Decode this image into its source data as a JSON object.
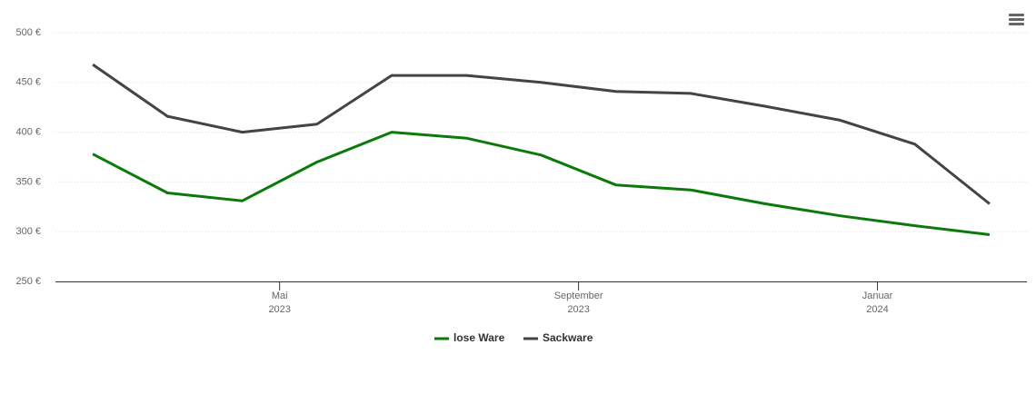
{
  "chart_data": {
    "type": "line",
    "x": [
      "2023-02",
      "2023-03",
      "2023-04",
      "2023-05",
      "2023-06",
      "2023-07",
      "2023-08",
      "2023-09",
      "2023-10",
      "2023-11",
      "2023-12",
      "2024-01",
      "2024-02"
    ],
    "xlim": [
      "2023-02",
      "2024-02"
    ],
    "xticks": [
      {
        "value": "2023-05",
        "label": "Mai",
        "year": "2023"
      },
      {
        "value": "2023-09",
        "label": "September",
        "year": "2023"
      },
      {
        "value": "2024-01",
        "label": "Januar",
        "year": "2024"
      }
    ],
    "series": [
      {
        "name": "lose Ware",
        "color": "#0b7a0b",
        "values": [
          378,
          339,
          331,
          370,
          400,
          394,
          377,
          347,
          342,
          328,
          316,
          306,
          297
        ]
      },
      {
        "name": "Sackware",
        "color": "#434348",
        "values": [
          468,
          416,
          400,
          408,
          457,
          457,
          450,
          441,
          439,
          426,
          412,
          388,
          328
        ]
      }
    ],
    "ylim": [
      250,
      500
    ],
    "yticks": [
      {
        "value": 250,
        "label": "250 €"
      },
      {
        "value": 300,
        "label": "300 €"
      },
      {
        "value": 350,
        "label": "350 €"
      },
      {
        "value": 400,
        "label": "400 €"
      },
      {
        "value": 450,
        "label": "450 €"
      },
      {
        "value": 500,
        "label": "500 €"
      }
    ],
    "grid": true,
    "legend": "bottom"
  }
}
